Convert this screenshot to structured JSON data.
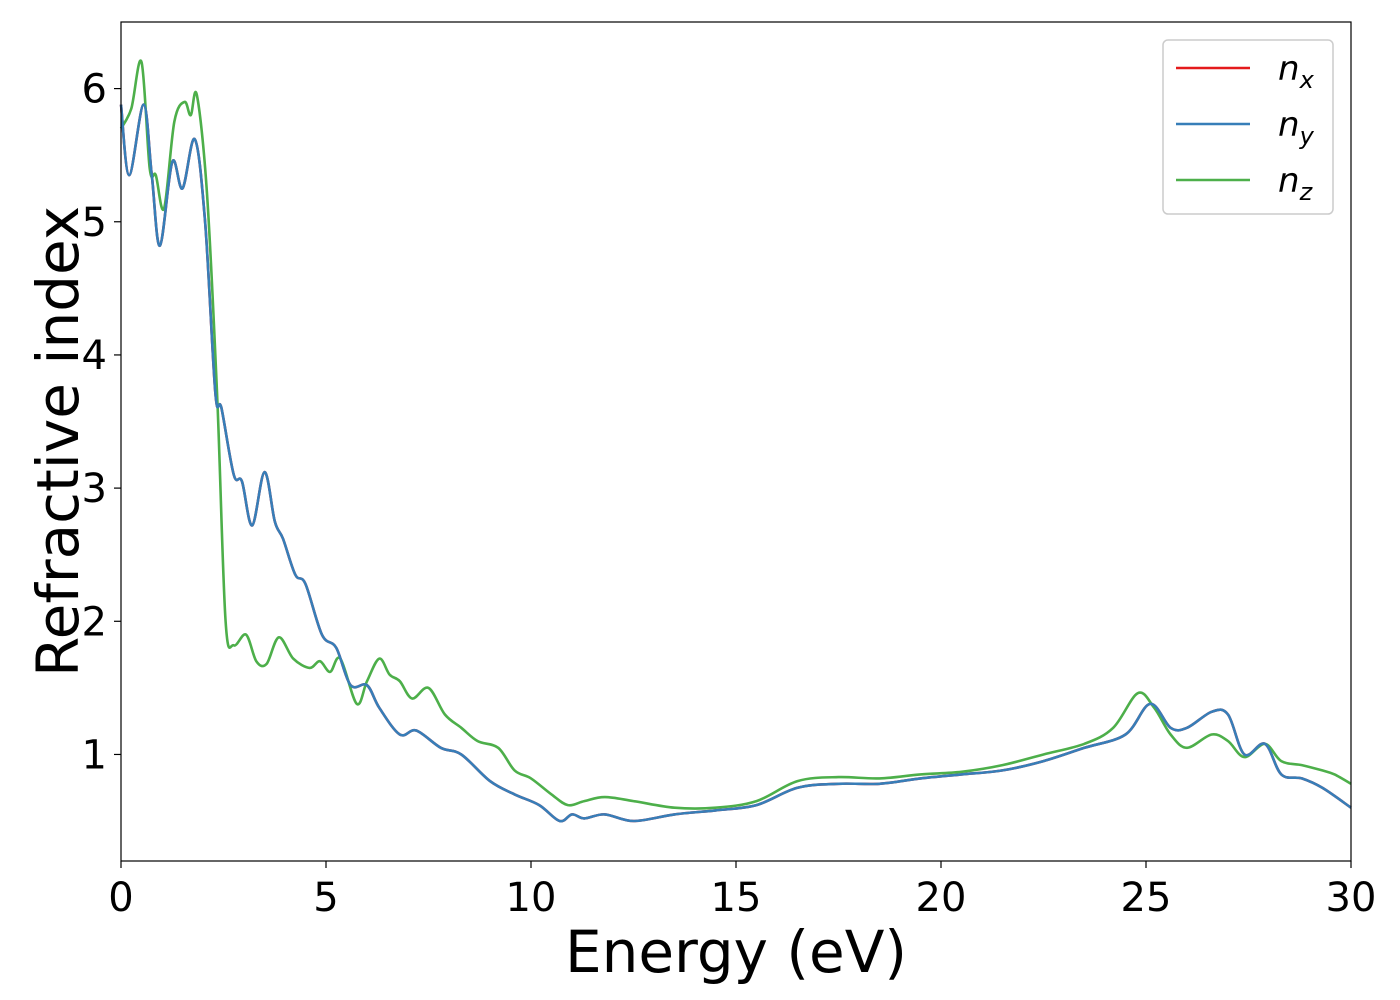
{
  "chart_data": {
    "type": "line",
    "xlabel": "Energy (eV)",
    "ylabel": "Refractive index",
    "xlim": [
      0,
      30
    ],
    "ylim": [
      0.2,
      6.5
    ],
    "xticks": [
      0,
      5,
      10,
      15,
      20,
      25,
      30
    ],
    "yticks": [
      1,
      2,
      3,
      4,
      5,
      6
    ],
    "grid": false,
    "legend_position": "top-right",
    "series": [
      {
        "name": "n",
        "subscript": "x",
        "color": "#e41a1c",
        "x": [
          0,
          0.2,
          0.55,
          0.75,
          0.95,
          1.25,
          1.5,
          1.8,
          2.05,
          2.3,
          2.45,
          2.75,
          2.95,
          3.2,
          3.5,
          3.75,
          3.95,
          4.25,
          4.5,
          4.9,
          5.25,
          5.6,
          6.0,
          6.3,
          6.8,
          7.2,
          7.8,
          8.3,
          9.0,
          9.6,
          10.2,
          10.7,
          11.0,
          11.3,
          11.8,
          12.5,
          13.5,
          14.5,
          15.5,
          16.5,
          17.5,
          18.5,
          19.5,
          20.5,
          21.5,
          22.5,
          23.5,
          24.5,
          25.1,
          25.6,
          26.0,
          26.6,
          27.0,
          27.4,
          27.9,
          28.3,
          28.8,
          29.3,
          30.0
        ],
        "values": [
          5.88,
          5.35,
          5.88,
          5.35,
          4.82,
          5.45,
          5.25,
          5.62,
          5.0,
          3.72,
          3.6,
          3.1,
          3.05,
          2.72,
          3.12,
          2.75,
          2.62,
          2.35,
          2.28,
          1.9,
          1.8,
          1.52,
          1.52,
          1.35,
          1.15,
          1.18,
          1.05,
          1.0,
          0.8,
          0.7,
          0.62,
          0.5,
          0.55,
          0.52,
          0.55,
          0.5,
          0.55,
          0.58,
          0.62,
          0.75,
          0.78,
          0.78,
          0.82,
          0.85,
          0.88,
          0.95,
          1.05,
          1.15,
          1.38,
          1.2,
          1.2,
          1.32,
          1.3,
          1.0,
          1.08,
          0.85,
          0.82,
          0.75,
          0.6
        ]
      },
      {
        "name": "n",
        "subscript": "y",
        "color": "#377eb8",
        "x": [
          0,
          0.2,
          0.55,
          0.75,
          0.95,
          1.25,
          1.5,
          1.8,
          2.05,
          2.3,
          2.45,
          2.75,
          2.95,
          3.2,
          3.5,
          3.75,
          3.95,
          4.25,
          4.5,
          4.9,
          5.25,
          5.6,
          6.0,
          6.3,
          6.8,
          7.2,
          7.8,
          8.3,
          9.0,
          9.6,
          10.2,
          10.7,
          11.0,
          11.3,
          11.8,
          12.5,
          13.5,
          14.5,
          15.5,
          16.5,
          17.5,
          18.5,
          19.5,
          20.5,
          21.5,
          22.5,
          23.5,
          24.5,
          25.1,
          25.6,
          26.0,
          26.6,
          27.0,
          27.4,
          27.9,
          28.3,
          28.8,
          29.3,
          30.0
        ],
        "values": [
          5.88,
          5.35,
          5.88,
          5.35,
          4.82,
          5.45,
          5.25,
          5.62,
          5.0,
          3.72,
          3.6,
          3.1,
          3.05,
          2.72,
          3.12,
          2.75,
          2.62,
          2.35,
          2.28,
          1.9,
          1.8,
          1.52,
          1.52,
          1.35,
          1.15,
          1.18,
          1.05,
          1.0,
          0.8,
          0.7,
          0.62,
          0.5,
          0.55,
          0.52,
          0.55,
          0.5,
          0.55,
          0.58,
          0.62,
          0.75,
          0.78,
          0.78,
          0.82,
          0.85,
          0.88,
          0.95,
          1.05,
          1.15,
          1.38,
          1.2,
          1.2,
          1.32,
          1.3,
          1.0,
          1.08,
          0.85,
          0.82,
          0.75,
          0.6
        ]
      },
      {
        "name": "n",
        "subscript": "z",
        "color": "#4daf4a",
        "x": [
          0,
          0.25,
          0.5,
          0.7,
          0.85,
          1.05,
          1.3,
          1.55,
          1.7,
          1.85,
          2.1,
          2.35,
          2.55,
          2.75,
          3.05,
          3.3,
          3.55,
          3.85,
          4.2,
          4.6,
          4.85,
          5.1,
          5.35,
          5.75,
          6.0,
          6.3,
          6.55,
          6.8,
          7.1,
          7.5,
          7.9,
          8.3,
          8.7,
          9.2,
          9.6,
          10.0,
          10.5,
          10.9,
          11.3,
          11.8,
          12.5,
          13.5,
          14.5,
          15.5,
          16.5,
          17.5,
          18.5,
          19.5,
          20.5,
          21.5,
          22.5,
          23.5,
          24.2,
          24.8,
          25.2,
          25.6,
          26.0,
          26.6,
          27.0,
          27.4,
          27.9,
          28.3,
          28.8,
          29.3,
          29.6,
          30.0
        ],
        "values": [
          5.7,
          5.85,
          6.2,
          5.4,
          5.35,
          5.1,
          5.75,
          5.9,
          5.8,
          5.95,
          5.2,
          3.65,
          2.0,
          1.82,
          1.9,
          1.7,
          1.68,
          1.88,
          1.72,
          1.65,
          1.7,
          1.62,
          1.72,
          1.38,
          1.55,
          1.72,
          1.6,
          1.55,
          1.42,
          1.5,
          1.3,
          1.2,
          1.1,
          1.05,
          0.88,
          0.82,
          0.7,
          0.62,
          0.65,
          0.68,
          0.65,
          0.6,
          0.6,
          0.65,
          0.8,
          0.83,
          0.82,
          0.85,
          0.87,
          0.92,
          1.0,
          1.08,
          1.2,
          1.46,
          1.35,
          1.15,
          1.05,
          1.15,
          1.1,
          0.98,
          1.08,
          0.95,
          0.92,
          0.88,
          0.85,
          0.78
        ]
      }
    ]
  }
}
